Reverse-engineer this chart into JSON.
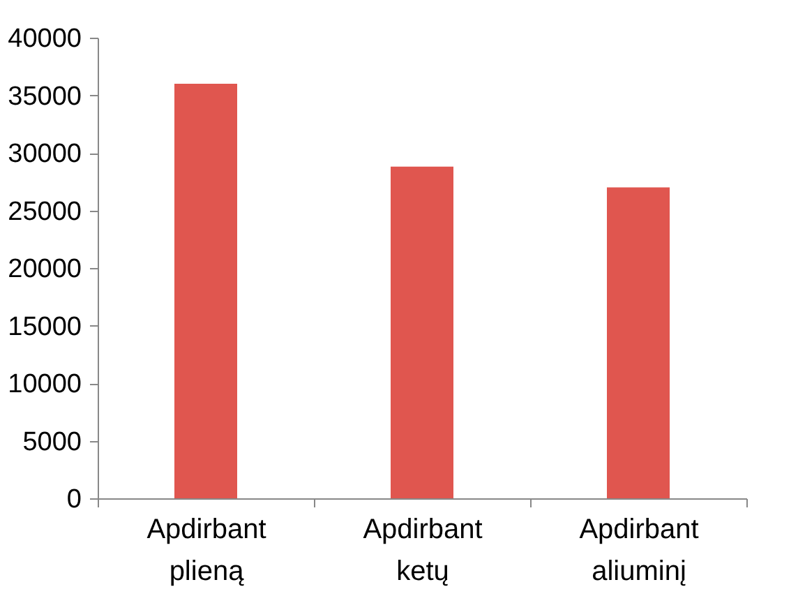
{
  "chart_data": {
    "type": "bar",
    "categories": [
      "Apdirbant plieną",
      "Apdirbant ketų",
      "Apdirbant aliuminį"
    ],
    "values": [
      36000,
      28800,
      27000
    ],
    "color": "#e0564f",
    "ylim": [
      0,
      40000
    ],
    "yticks": [
      0,
      5000,
      10000,
      15000,
      20000,
      25000,
      30000,
      35000,
      40000
    ],
    "grid": false
  }
}
